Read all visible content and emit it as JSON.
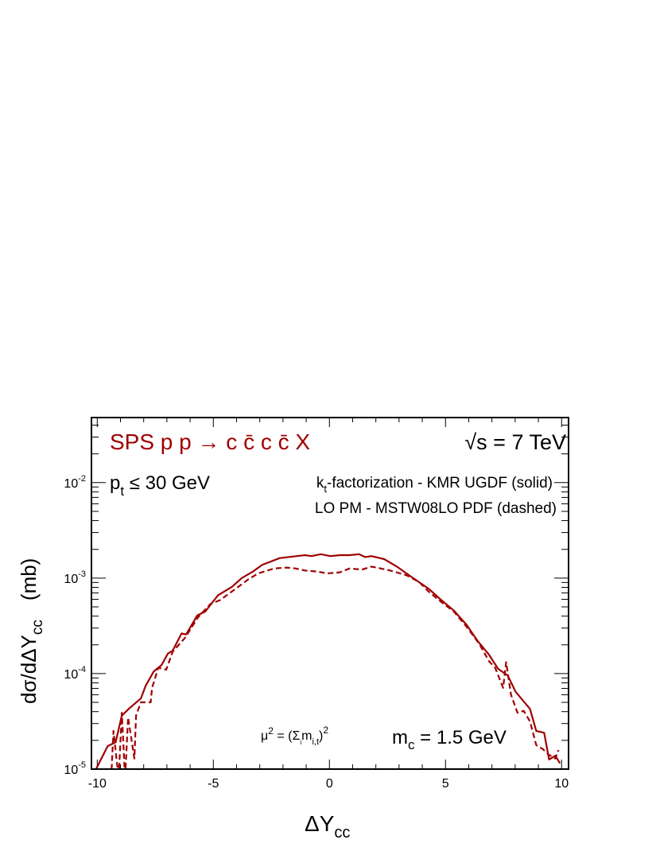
{
  "chart_data": {
    "type": "line",
    "xlabel": {
      "main": "ΔY",
      "sub": "cc"
    },
    "ylabel": {
      "main": "dσ/dΔY",
      "sub": "cc",
      "unit": "(mb)"
    },
    "xlim": [
      -10.25,
      10.3
    ],
    "ylim": [
      1e-05,
      0.048
    ],
    "yscale": "log",
    "grid": false,
    "x_ticks": [
      "-10",
      "-5",
      "0",
      "5",
      "10"
    ],
    "x_tick_values": [
      -10,
      -5,
      0,
      5,
      10
    ],
    "y_ticks": [
      {
        "base": "10",
        "exp": "-5"
      },
      {
        "base": "10",
        "exp": "-4"
      },
      {
        "base": "10",
        "exp": "-3"
      },
      {
        "base": "10",
        "exp": "-2"
      }
    ],
    "y_tick_values": [
      1e-05,
      0.0001,
      0.001,
      0.01
    ],
    "line_color": "#a00000",
    "annotations": {
      "title": {
        "text": "SPS  p p → c c̄ c c̄ X",
        "color": "#a00000"
      },
      "energy": {
        "root": "√",
        "rest": "s = 7 TeV"
      },
      "pt_cut": {
        "main": "p",
        "sub": "t",
        "rest": " ≤ 30 GeV"
      },
      "legend_solid": {
        "main": "k",
        "sub": "t",
        "rest": "-factorization - KMR UGDF (solid)"
      },
      "legend_dashed": "LO PM - MSTW08LO PDF (dashed)",
      "scale": {
        "a": "μ",
        "sup1": "2",
        "b": " = (Σ",
        "subi": "i",
        "c": "m",
        "sub": "i,t",
        "d": ")",
        "sup2": "2"
      },
      "mass": {
        "main": "m",
        "sub": "c",
        "rest": " = 1.5 GeV"
      }
    },
    "series": [
      {
        "style": "solid",
        "x": [
          -10.05,
          -9.55,
          -9.21,
          -8.94,
          -8.6,
          -8.12,
          -7.92,
          -7.57,
          -7.23,
          -6.96,
          -6.75,
          -6.37,
          -6.17,
          -5.69,
          -5.35,
          -4.8,
          -4.19,
          -3.78,
          -3.3,
          -2.89,
          -2.14,
          -1.05,
          -0.78,
          -0.37,
          0.04,
          0.45,
          0.86,
          1.27,
          1.54,
          1.81,
          2.36,
          2.91,
          3.32,
          3.79,
          4.27,
          4.82,
          5.36,
          5.91,
          6.39,
          6.87,
          7.27,
          7.68,
          8.02,
          8.36,
          8.64,
          8.91,
          9.25,
          9.46,
          9.73,
          9.93
        ],
        "y": [
          1e-05,
          1.74e-05,
          1.91e-05,
          3.63e-05,
          4.37e-05,
          5.5e-05,
          7.41e-05,
          0.000105,
          0.000123,
          0.000162,
          0.000174,
          0.000263,
          0.000257,
          0.000407,
          0.000447,
          0.000661,
          0.000813,
          0.001,
          0.00117,
          0.00138,
          0.00162,
          0.00174,
          0.0017,
          0.00178,
          0.0017,
          0.00174,
          0.00174,
          0.00178,
          0.00166,
          0.0017,
          0.00158,
          0.00132,
          0.00112,
          0.000933,
          0.000776,
          0.000589,
          0.000457,
          0.000324,
          0.000219,
          0.000158,
          0.000112,
          9.55e-05,
          6.46e-05,
          5.13e-05,
          4.27e-05,
          2.51e-05,
          2.4e-05,
          1.26e-05,
          1.38e-05,
          1.15e-05
        ]
      },
      {
        "style": "dashed",
        "x": [
          -9.4,
          -9.3,
          -9.08,
          -8.94,
          -8.8,
          -8.67,
          -8.4,
          -8.33,
          -8.12,
          -7.7,
          -7.64,
          -7.37,
          -7.03,
          -6.75,
          -6.2,
          -5.66,
          -5.12,
          -4.71,
          -4.03,
          -3.48,
          -3.07,
          -2.39,
          -1.85,
          -1.44,
          -1.03,
          -0.5,
          -0.1,
          0.45,
          0.86,
          1.41,
          1.81,
          2.22,
          2.63,
          3.32,
          3.86,
          4.27,
          4.82,
          5.36,
          5.91,
          6.46,
          6.87,
          7.14,
          7.48,
          7.61,
          7.82,
          8.1,
          8.37,
          8.64,
          8.91,
          9.19,
          9.46,
          9.73,
          9.87
        ],
        "y": [
          8e-06,
          2.51e-05,
          8e-06,
          3.89e-05,
          8e-06,
          3.47e-05,
          1.29e-05,
          3.63e-05,
          5.01e-05,
          5.01e-05,
          7.08e-05,
          0.000115,
          0.00011,
          0.00017,
          0.00024,
          0.000389,
          0.000537,
          0.000589,
          0.000776,
          0.000977,
          0.00112,
          0.00126,
          0.00129,
          0.00126,
          0.0012,
          0.00117,
          0.00112,
          0.00115,
          0.00126,
          0.00123,
          0.00132,
          0.00126,
          0.0012,
          0.00107,
          0.000912,
          0.000724,
          0.000562,
          0.000447,
          0.000309,
          0.000204,
          0.000135,
          0.000115,
          7.08e-05,
          0.000132,
          6.03e-05,
          3.89e-05,
          4.07e-05,
          3.16e-05,
          1.78e-05,
          1.62e-05,
          1.41e-05,
          1.29e-05,
          1.58e-05
        ]
      }
    ]
  }
}
